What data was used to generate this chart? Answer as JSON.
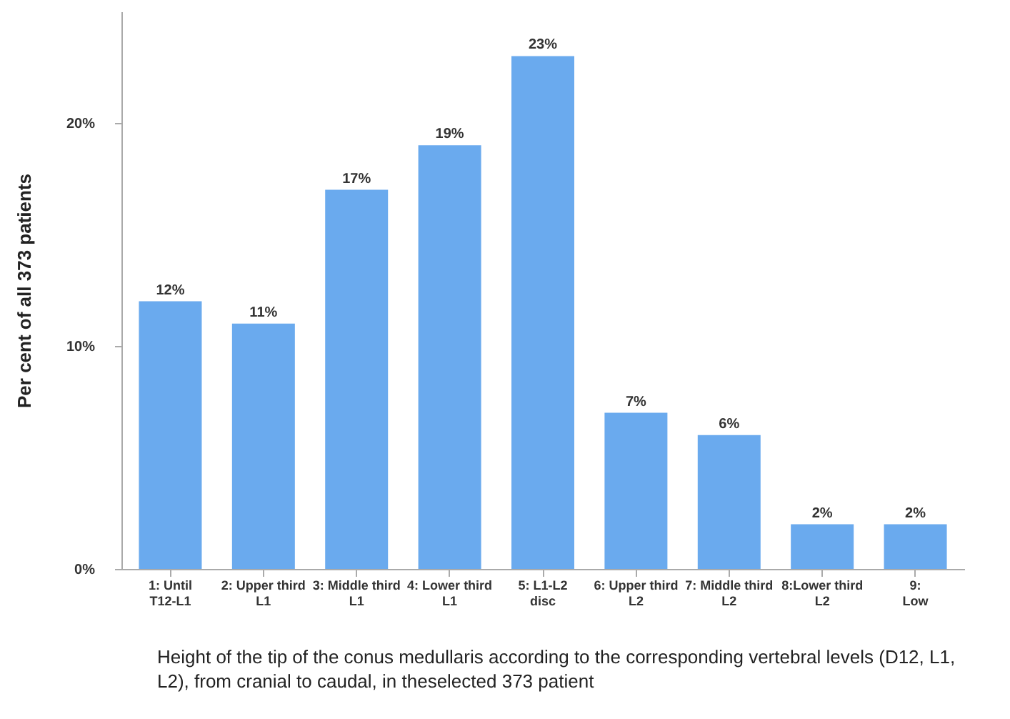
{
  "chart_data": {
    "type": "bar",
    "ylabel": "Per cent of all 373 patients",
    "categories": [
      "1: Until T12-L1",
      "2: Upper third L1",
      "3: Middle third L1",
      "4: Lower third L1",
      "5: L1-L2 disc",
      "6: Upper third L2",
      "7: Middle third L2",
      "8:Lower third L2",
      "9: Low"
    ],
    "values": [
      12,
      11,
      17,
      19,
      23,
      7,
      6,
      2,
      2
    ],
    "value_labels": [
      "12%",
      "11%",
      "17%",
      "19%",
      "23%",
      "7%",
      "6%",
      "2%",
      "2%"
    ],
    "color": "#6aaaee",
    "ylim": [
      0,
      25
    ],
    "yticks": [
      {
        "value": 0,
        "label": "0%"
      },
      {
        "value": 10,
        "label": "10%"
      },
      {
        "value": 20,
        "label": "20%"
      }
    ],
    "grid": false,
    "annotations": [
      "Height of the tip of the conus medullaris according to the corresponding vertebral levels (D12, L1, L2), from cranial to caudal, in theselected 373 patient"
    ]
  }
}
